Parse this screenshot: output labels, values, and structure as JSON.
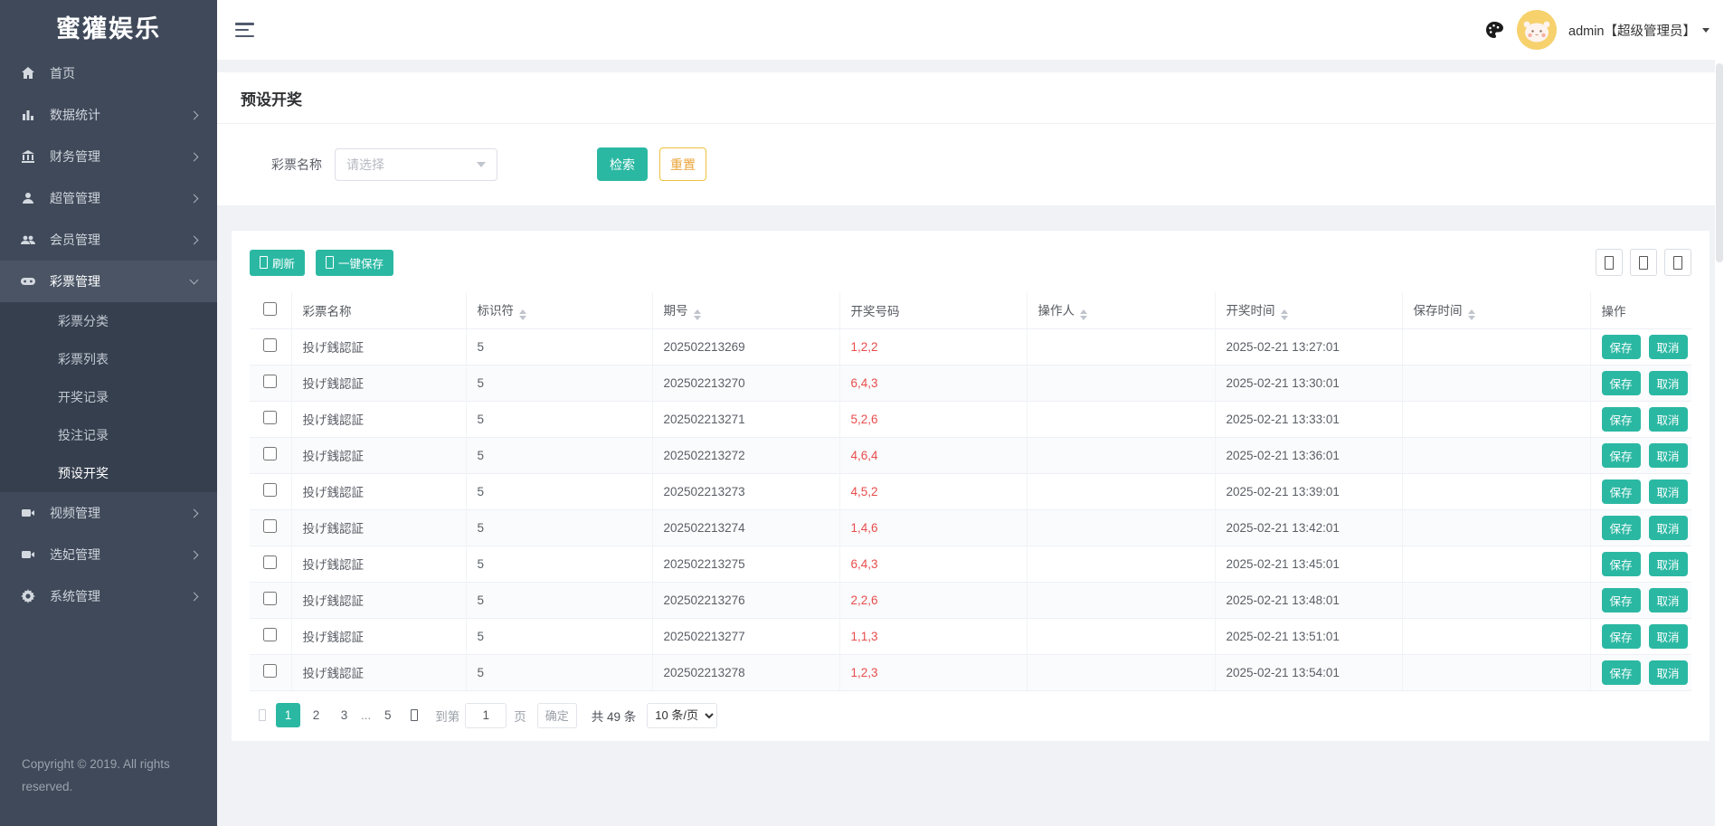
{
  "sidebar": {
    "logo": "蜜獾娱乐",
    "items": [
      {
        "label": "首页",
        "icon": "home-icon"
      },
      {
        "label": "数据统计",
        "icon": "chart-icon"
      },
      {
        "label": "财务管理",
        "icon": "bank-icon"
      },
      {
        "label": "超管管理",
        "icon": "user-icon"
      },
      {
        "label": "会员管理",
        "icon": "users-icon"
      },
      {
        "label": "彩票管理",
        "icon": "gamepad-icon"
      },
      {
        "label": "视频管理",
        "icon": "video-icon"
      },
      {
        "label": "选妃管理",
        "icon": "video-icon"
      },
      {
        "label": "系统管理",
        "icon": "gear-icon"
      }
    ],
    "lottery_children": [
      {
        "label": "彩票分类"
      },
      {
        "label": "彩票列表"
      },
      {
        "label": "开奖记录"
      },
      {
        "label": "投注记录"
      },
      {
        "label": "预设开奖"
      }
    ],
    "copyright": "Copyright © 2019. All rights reserved."
  },
  "topbar": {
    "user": "admin【超级管理员】"
  },
  "page": {
    "title": "预设开奖"
  },
  "filter": {
    "label": "彩票名称",
    "select_placeholder": "请选择",
    "search": "检索",
    "reset": "重置"
  },
  "toolbar": {
    "refresh": "刷新",
    "save_all": "一键保存"
  },
  "table": {
    "headers": {
      "name": "彩票名称",
      "code": "标识符",
      "issue": "期号",
      "numbers": "开奖号码",
      "operator": "操作人",
      "draw_time": "开奖时间",
      "save_time": "保存时间",
      "actions": "操作"
    },
    "save": "保存",
    "cancel": "取消",
    "rows": [
      {
        "name": "投げ銭認証",
        "code": "5",
        "issue": "202502213269",
        "numbers": "1,2,2",
        "operator": "",
        "draw_time": "2025-02-21 13:27:01",
        "save_time": ""
      },
      {
        "name": "投げ銭認証",
        "code": "5",
        "issue": "202502213270",
        "numbers": "6,4,3",
        "operator": "",
        "draw_time": "2025-02-21 13:30:01",
        "save_time": ""
      },
      {
        "name": "投げ銭認証",
        "code": "5",
        "issue": "202502213271",
        "numbers": "5,2,6",
        "operator": "",
        "draw_time": "2025-02-21 13:33:01",
        "save_time": ""
      },
      {
        "name": "投げ銭認証",
        "code": "5",
        "issue": "202502213272",
        "numbers": "4,6,4",
        "operator": "",
        "draw_time": "2025-02-21 13:36:01",
        "save_time": ""
      },
      {
        "name": "投げ銭認証",
        "code": "5",
        "issue": "202502213273",
        "numbers": "4,5,2",
        "operator": "",
        "draw_time": "2025-02-21 13:39:01",
        "save_time": ""
      },
      {
        "name": "投げ銭認証",
        "code": "5",
        "issue": "202502213274",
        "numbers": "1,4,6",
        "operator": "",
        "draw_time": "2025-02-21 13:42:01",
        "save_time": ""
      },
      {
        "name": "投げ銭認証",
        "code": "5",
        "issue": "202502213275",
        "numbers": "6,4,3",
        "operator": "",
        "draw_time": "2025-02-21 13:45:01",
        "save_time": ""
      },
      {
        "name": "投げ銭認証",
        "code": "5",
        "issue": "202502213276",
        "numbers": "2,2,6",
        "operator": "",
        "draw_time": "2025-02-21 13:48:01",
        "save_time": ""
      },
      {
        "name": "投げ銭認証",
        "code": "5",
        "issue": "202502213277",
        "numbers": "1,1,3",
        "operator": "",
        "draw_time": "2025-02-21 13:51:01",
        "save_time": ""
      },
      {
        "name": "投げ銭認証",
        "code": "5",
        "issue": "202502213278",
        "numbers": "1,2,3",
        "operator": "",
        "draw_time": "2025-02-21 13:54:01",
        "save_time": ""
      }
    ]
  },
  "pagination": {
    "page1": "1",
    "page2": "2",
    "page3": "3",
    "dots": "...",
    "page5": "5",
    "jump_label": "到第",
    "jump_value": "1",
    "page_word": "页",
    "confirm": "确定",
    "total": "共 49 条",
    "per_page": "10 条/页"
  },
  "colors": {
    "accent_teal": "#2bb8a3",
    "danger_red": "#e84c4c",
    "warning_yellow": "#eec13c",
    "sidebar_bg": "#3f4959"
  }
}
